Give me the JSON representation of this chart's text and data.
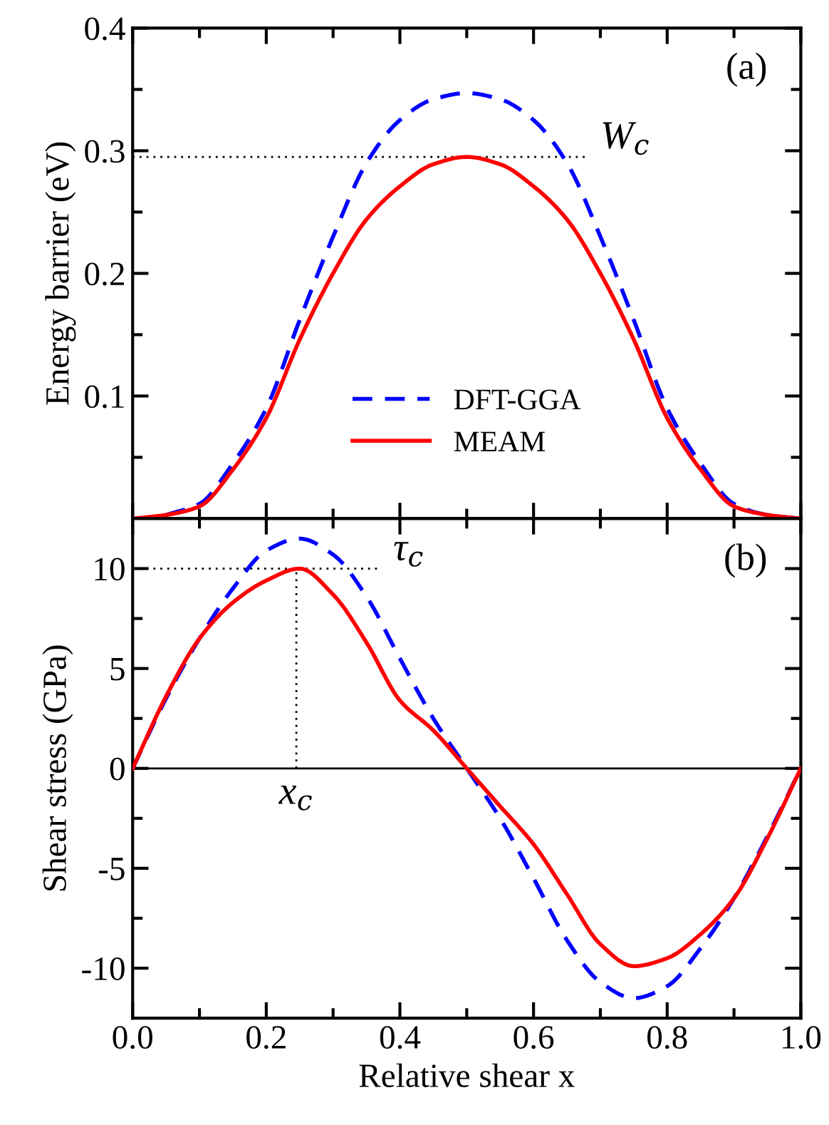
{
  "chart_data": [
    {
      "type": "line",
      "ylabel": "Energy barrier (eV)",
      "x": [
        0,
        0.05,
        0.1,
        0.15,
        0.2,
        0.25,
        0.3,
        0.35,
        0.4,
        0.45,
        0.5,
        0.55,
        0.6,
        0.65,
        0.7,
        0.75,
        0.8,
        0.85,
        0.9,
        0.95,
        1.0
      ],
      "series": [
        {
          "name": "DFT-GGA",
          "color": "#0000ff",
          "line_style": "dashed",
          "values": [
            null,
            0.003,
            0.012,
            0.045,
            0.09,
            0.162,
            0.23,
            0.29,
            0.325,
            0.342,
            0.347,
            0.342,
            0.325,
            0.29,
            0.23,
            0.162,
            0.09,
            0.045,
            0.012,
            0.003,
            0
          ]
        },
        {
          "name": "MEAM",
          "color": "#ff0000",
          "line_style": "solid",
          "values": [
            0,
            0.003,
            0.01,
            0.04,
            0.082,
            0.146,
            0.2,
            0.244,
            0.271,
            0.289,
            0.295,
            0.289,
            0.271,
            0.244,
            0.2,
            0.146,
            0.082,
            0.04,
            0.01,
            0.003,
            0
          ]
        }
      ],
      "xlim": [
        0,
        1
      ],
      "ylim": [
        0,
        0.4
      ],
      "yticks": [
        {
          "value": 0.05,
          "label": null
        },
        0.1,
        {
          "value": 0.15,
          "label": null
        },
        0.2,
        {
          "value": 0.25,
          "label": null
        },
        0.3,
        {
          "value": 0.35,
          "label": null
        },
        0.4
      ],
      "tick_labels": "y",
      "legend": "bottom",
      "grid": false,
      "ref_lines": [
        {
          "axis": "y",
          "value": 0.295,
          "label": "W$_{c}$",
          "color": "#000000",
          "line_style": "dotted"
        }
      ],
      "annotations": [
        "(a)"
      ]
    },
    {
      "type": "line",
      "xlabel": "Relative shear x",
      "ylabel": "Shear stress (GPa)",
      "x": [
        0,
        0.05,
        0.1,
        0.15,
        0.2,
        0.25,
        0.3,
        0.35,
        0.4,
        0.45,
        0.5,
        0.55,
        0.6,
        0.65,
        0.7,
        0.75,
        0.8,
        0.85,
        0.9,
        0.95,
        1.0
      ],
      "series": [
        {
          "color": "#0000ff",
          "line_style": "dashed",
          "values": [
            0,
            3.5,
            6.5,
            9.0,
            10.9,
            11.5,
            10.7,
            8.6,
            5.5,
            2.5,
            0,
            -2.5,
            -5.5,
            -8.6,
            -10.7,
            -11.5,
            -10.9,
            -9.0,
            -6.5,
            -3.4,
            0
          ]
        },
        {
          "color": "#ff0000",
          "line_style": "solid",
          "values": [
            0,
            3.6,
            6.5,
            8.3,
            9.4,
            10.0,
            8.7,
            6.3,
            3.4,
            1.9,
            0,
            -1.9,
            -3.8,
            -6.3,
            -8.8,
            -9.9,
            -9.5,
            -8.3,
            -6.5,
            -3.5,
            0
          ]
        }
      ],
      "xlim": [
        0,
        1
      ],
      "xticks": [
        {
          "value": 0,
          "label": "0.0"
        },
        {
          "value": 0.1,
          "label": null
        },
        {
          "value": 0.2,
          "label": "0.2"
        },
        {
          "value": 0.3,
          "label": null
        },
        {
          "value": 0.4,
          "label": "0.4"
        },
        {
          "value": 0.5,
          "label": null
        },
        {
          "value": 0.6,
          "label": "0.6"
        },
        {
          "value": 0.7,
          "label": null
        },
        {
          "value": 0.8,
          "label": "0.8"
        },
        {
          "value": 0.9,
          "label": null
        },
        {
          "value": 1.0,
          "label": "1.0"
        }
      ],
      "ylim": [
        -12.5,
        12.5
      ],
      "yticks": [
        -10,
        {
          "value": -7.5,
          "label": null
        },
        -5,
        {
          "value": -2.5,
          "label": null
        },
        0,
        {
          "value": 2.5,
          "label": null
        },
        5,
        {
          "value": 7.5,
          "label": null
        },
        10
      ],
      "legend": false,
      "grid": false,
      "ref_lines": [
        {
          "axis": "y",
          "value": 0,
          "color": "#000000",
          "line_style": "solid"
        },
        {
          "axis": "y",
          "value": 10,
          "label": "τ$_{c}$",
          "color": "#000000",
          "line_style": "dotted"
        },
        {
          "axis": "x",
          "value": 0.245,
          "label": "x$_{c}$",
          "color": "#000000",
          "line_style": "dotted"
        }
      ],
      "annotations": [
        "(b)"
      ]
    }
  ]
}
